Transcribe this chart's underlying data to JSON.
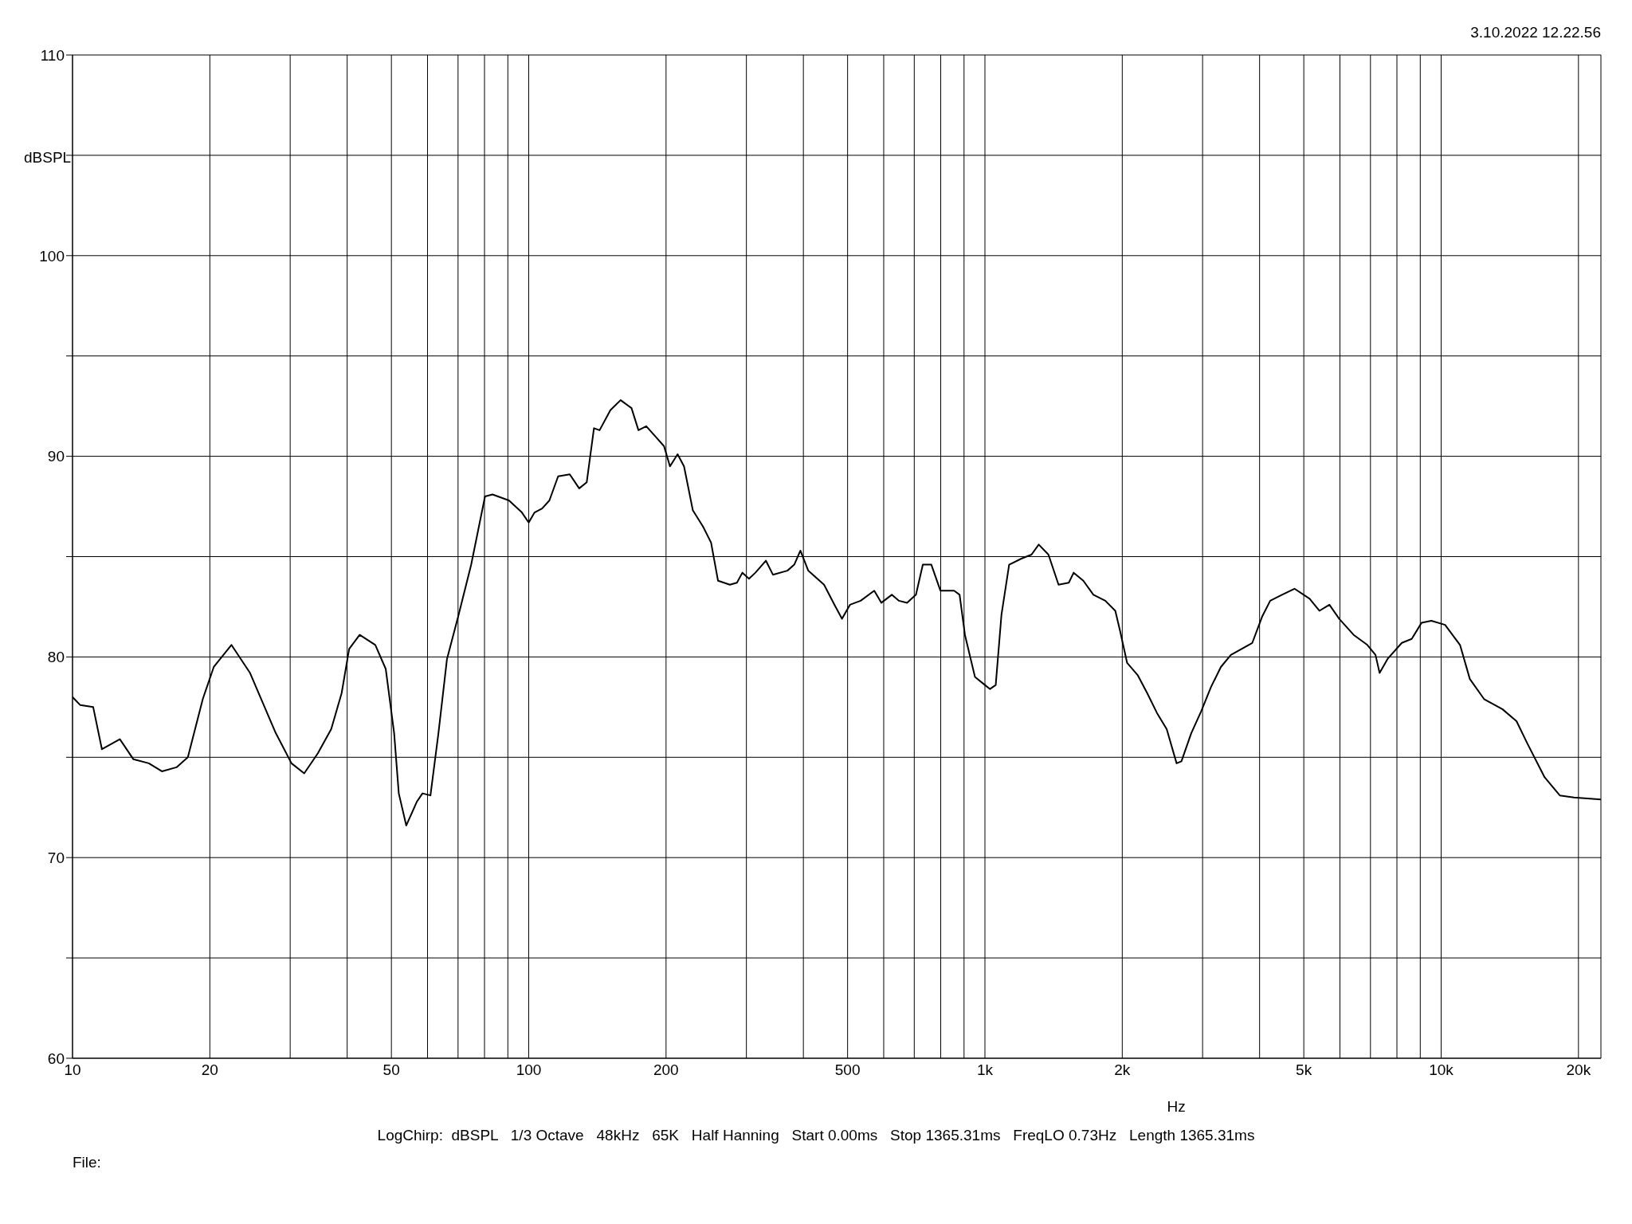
{
  "chart_data": {
    "type": "line",
    "xlabel": "Hz",
    "ylabel": "dBSPL",
    "log": "x",
    "grid": true,
    "marker": "none",
    "line_style": "solid",
    "annotations": [
      "3.10.2022 12.22.56",
      "LogChirp:  dBSPL   1/3 Octave   48kHz   65K   Half Hanning   Start 0.00ms   Stop 1365.31ms   FreqLO 0.73Hz   Length 1365.31ms",
      "File:"
    ],
    "xlim": [
      10,
      22400
    ],
    "ylim": [
      60,
      110
    ],
    "xticks": [
      10,
      20,
      {
        "value": 30,
        "label": null
      },
      {
        "value": 40,
        "label": null
      },
      50,
      {
        "value": 60,
        "label": null
      },
      {
        "value": 70,
        "label": null
      },
      {
        "value": 80,
        "label": null
      },
      {
        "value": 90,
        "label": null
      },
      100,
      200,
      {
        "value": 300,
        "label": null
      },
      {
        "value": 400,
        "label": null
      },
      500,
      {
        "value": 600,
        "label": null
      },
      {
        "value": 700,
        "label": null
      },
      {
        "value": 800,
        "label": null
      },
      {
        "value": 900,
        "label": null
      },
      {
        "value": 1000,
        "label": "1k"
      },
      {
        "value": 2000,
        "label": "2k"
      },
      {
        "value": 3000,
        "label": null
      },
      {
        "value": 4000,
        "label": null
      },
      {
        "value": 5000,
        "label": "5k"
      },
      {
        "value": 6000,
        "label": null
      },
      {
        "value": 7000,
        "label": null
      },
      {
        "value": 8000,
        "label": null
      },
      {
        "value": 9000,
        "label": null
      },
      {
        "value": 10000,
        "label": "10k"
      },
      {
        "value": 20000,
        "label": "20k"
      }
    ],
    "yticks": [
      60,
      {
        "value": 65,
        "label": null
      },
      70,
      {
        "value": 75,
        "label": null
      },
      80,
      {
        "value": 85,
        "label": null
      },
      90,
      {
        "value": 95,
        "label": null
      },
      100,
      {
        "value": 105,
        "label": null
      },
      110
    ],
    "series": [
      {
        "color": "#000000",
        "x": [
          10,
          10.4,
          11.1,
          11.6,
          12.7,
          13.6,
          14.7,
          15.7,
          16.9,
          17.9,
          19.3,
          20.4,
          22.3,
          24.5,
          27.9,
          30.2,
          32.2,
          34.5,
          36.9,
          38.9,
          40.4,
          42.6,
          46.1,
          48.6,
          50.7,
          51.9,
          53.9,
          56.9,
          58.5,
          60.9,
          63.4,
          66.2,
          70.2,
          74.8,
          80.2,
          83.3,
          90.5,
          96.6,
          100,
          103,
          107,
          111,
          116,
          123,
          129,
          134,
          139,
          143,
          151,
          159,
          168,
          174,
          181,
          191,
          198,
          204,
          212,
          219,
          229,
          241,
          251,
          260,
          276,
          286,
          294,
          304,
          314,
          331,
          343,
          369,
          382,
          394,
          410,
          444,
          468,
          486,
          506,
          534,
          572,
          593,
          625,
          648,
          675,
          706,
          731,
          763,
          799,
          856,
          880,
          904,
          951,
          1000,
          1026,
          1056,
          1087,
          1130,
          1202,
          1265,
          1312,
          1378,
          1450,
          1527,
          1565,
          1643,
          1729,
          1836,
          1931,
          1978,
          2050,
          2161,
          2268,
          2384,
          2503,
          2631,
          2696,
          2833,
          2980,
          3130,
          3290,
          3460,
          3855,
          4050,
          4220,
          4480,
          4770,
          5150,
          5410,
          5690,
          5980,
          6430,
          6890,
          7180,
          7330,
          7630,
          8200,
          8620,
          9060,
          9520,
          10200,
          11000,
          11560,
          12420,
          13620,
          14630,
          15440,
          16860,
          18200,
          19550,
          22400
        ],
        "values": [
          78.0,
          77.6,
          77.5,
          75.4,
          75.9,
          74.9,
          74.7,
          74.3,
          74.5,
          75.0,
          77.9,
          79.5,
          80.6,
          79.2,
          76.2,
          74.7,
          74.2,
          75.2,
          76.4,
          78.2,
          80.4,
          81.1,
          80.6,
          79.4,
          76.2,
          73.2,
          71.6,
          72.8,
          73.2,
          73.1,
          76.2,
          79.9,
          82.1,
          84.6,
          88.0,
          88.1,
          87.8,
          87.2,
          86.7,
          87.2,
          87.4,
          87.8,
          89.0,
          89.1,
          88.4,
          88.7,
          91.4,
          91.3,
          92.3,
          92.8,
          92.4,
          91.3,
          91.5,
          90.9,
          90.5,
          89.5,
          90.1,
          89.5,
          87.3,
          86.5,
          85.7,
          83.8,
          83.6,
          83.7,
          84.2,
          83.9,
          84.2,
          84.8,
          84.1,
          84.3,
          84.6,
          85.3,
          84.3,
          83.6,
          82.6,
          81.9,
          82.6,
          82.8,
          83.3,
          82.7,
          83.1,
          82.8,
          82.7,
          83.1,
          84.6,
          84.6,
          83.3,
          83.3,
          83.1,
          81.1,
          79.0,
          78.6,
          78.4,
          78.6,
          82.1,
          84.6,
          84.9,
          85.1,
          85.6,
          85.1,
          83.6,
          83.7,
          84.2,
          83.8,
          83.1,
          82.8,
          82.3,
          81.3,
          79.7,
          79.1,
          78.2,
          77.2,
          76.4,
          74.7,
          74.8,
          76.2,
          77.3,
          78.5,
          79.5,
          80.1,
          80.7,
          82.0,
          82.8,
          83.1,
          83.4,
          82.9,
          82.3,
          82.6,
          81.9,
          81.1,
          80.6,
          80.1,
          79.2,
          79.9,
          80.7,
          80.9,
          81.7,
          81.8,
          81.6,
          80.6,
          78.9,
          77.9,
          77.4,
          76.8,
          75.7,
          74.0,
          73.1,
          73.0,
          72.9
        ]
      }
    ]
  }
}
